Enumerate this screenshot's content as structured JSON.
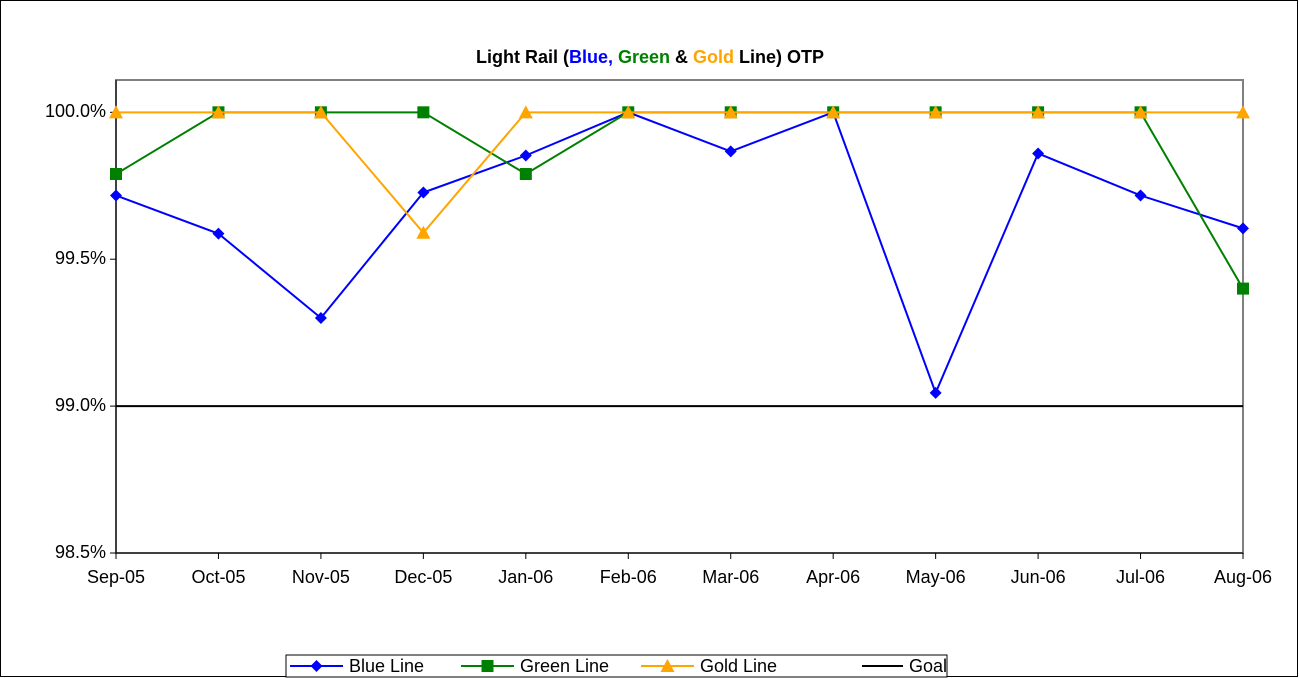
{
  "chart_data": {
    "type": "line",
    "title": [
      {
        "text": "Light Rail (",
        "color": "#000000"
      },
      {
        "text": "Blue,",
        "color": "#0000ff"
      },
      {
        "text": " Green",
        "color": "#008000"
      },
      {
        "text": " &",
        "color": "#000000"
      },
      {
        "text": " Gold",
        "color": "#ffa500"
      },
      {
        "text": " Line) OTP",
        "color": "#000000"
      }
    ],
    "categories": [
      "Sep-05",
      "Oct-05",
      "Nov-05",
      "Dec-05",
      "Jan-06",
      "Feb-06",
      "Mar-06",
      "Apr-06",
      "May-06",
      "Jun-06",
      "Jul-06",
      "Aug-06"
    ],
    "series": [
      {
        "name": "Blue Line",
        "color": "#0000ff",
        "marker": "diamond",
        "values": [
          99.717,
          99.587,
          99.3,
          99.727,
          99.853,
          100.0,
          99.867,
          100.0,
          99.045,
          99.86,
          99.717,
          99.605
        ]
      },
      {
        "name": "Green Line",
        "color": "#008000",
        "marker": "square",
        "values": [
          99.79,
          100.0,
          100.0,
          100.0,
          99.79,
          100.0,
          100.0,
          100.0,
          100.0,
          100.0,
          100.0,
          99.4
        ]
      },
      {
        "name": "Gold Line",
        "color": "#ffa500",
        "marker": "triangle",
        "values": [
          100.0,
          100.0,
          100.0,
          99.59,
          100.0,
          100.0,
          100.0,
          100.0,
          100.0,
          100.0,
          100.0,
          100.0
        ]
      },
      {
        "name": "Goal",
        "color": "#000000",
        "values": [
          99.0,
          99.0,
          99.0,
          99.0,
          99.0,
          99.0,
          99.0,
          99.0,
          99.0,
          99.0,
          99.0,
          99.0
        ]
      }
    ],
    "ylim": [
      98.5,
      100.11
    ],
    "yticks": [
      {
        "value": 98.5,
        "label": "98.5%"
      },
      {
        "value": 99.0,
        "label": "99.0%"
      },
      {
        "value": 99.5,
        "label": "99.5%"
      },
      {
        "value": 100.0,
        "label": "100.0%"
      }
    ],
    "grid": false,
    "legend": "bottom"
  }
}
